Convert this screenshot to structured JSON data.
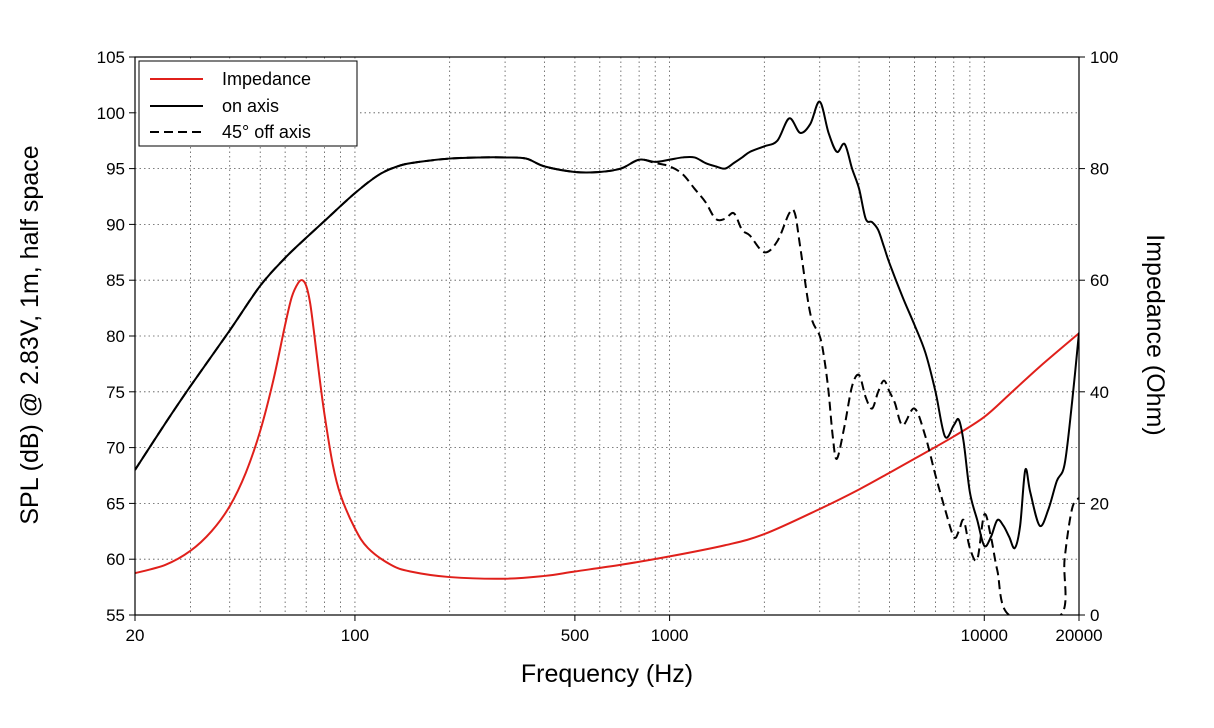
{
  "chart_data": {
    "type": "line",
    "title": "",
    "xlabel": "Frequency (Hz)",
    "ylabel": "SPL (dB) @ 2.83V, 1m, half space",
    "ylabel_right": "Impedance (Ohm)",
    "x_scale": "log",
    "xlim": [
      20,
      20000
    ],
    "ylim": [
      55,
      105
    ],
    "ylim_right": [
      0,
      100
    ],
    "grid": true,
    "legend_position": "top-left",
    "x_tick_labels": [
      "20",
      "100",
      "500",
      "1000",
      "10000",
      "20000"
    ],
    "x_tick_values": [
      20,
      100,
      500,
      1000,
      10000,
      20000
    ],
    "y_tick_labels": [
      "55",
      "60",
      "65",
      "70",
      "75",
      "80",
      "85",
      "90",
      "95",
      "100",
      "105"
    ],
    "y_tick_values": [
      55,
      60,
      65,
      70,
      75,
      80,
      85,
      90,
      95,
      100,
      105
    ],
    "y_right_tick_labels": [
      "0",
      "20",
      "40",
      "60",
      "80",
      "100"
    ],
    "y_right_tick_values": [
      0,
      20,
      40,
      60,
      80,
      100
    ],
    "series": [
      {
        "name": "Impedance",
        "axis": "right",
        "color": "#e0201b",
        "dash": "solid",
        "x": [
          20,
          25,
          30,
          35,
          40,
          45,
          50,
          55,
          60,
          63,
          66,
          68,
          70,
          72,
          74,
          77,
          80,
          85,
          90,
          100,
          110,
          130,
          150,
          200,
          300,
          400,
          500,
          700,
          1000,
          1500,
          2000,
          3000,
          4000,
          5000,
          6000,
          8000,
          10000,
          12000,
          15000,
          20000
        ],
        "values": [
          7.5,
          9.0,
          11.5,
          15.0,
          19.5,
          25.5,
          33.0,
          42.0,
          52.0,
          57.0,
          59.5,
          60.0,
          59.0,
          56.0,
          51.0,
          43.0,
          36.0,
          27.0,
          21.5,
          15.5,
          12.0,
          9.0,
          7.8,
          6.8,
          6.5,
          7.0,
          7.8,
          9.0,
          10.5,
          12.5,
          14.5,
          19.0,
          22.5,
          25.5,
          28.0,
          32.0,
          35.5,
          39.5,
          44.5,
          50.5
        ]
      },
      {
        "name": "on axis",
        "axis": "left",
        "color": "#000000",
        "dash": "solid",
        "x": [
          20,
          25,
          30,
          40,
          50,
          60,
          70,
          80,
          100,
          120,
          140,
          160,
          200,
          250,
          300,
          350,
          400,
          500,
          600,
          700,
          800,
          900,
          1000,
          1100,
          1200,
          1300,
          1400,
          1500,
          1600,
          1700,
          1800,
          2000,
          2200,
          2400,
          2600,
          2800,
          3000,
          3200,
          3400,
          3600,
          3800,
          4000,
          4200,
          4400,
          4600,
          4800,
          5000,
          5500,
          6000,
          6500,
          7000,
          7500,
          8000,
          8300,
          8600,
          9000,
          9500,
          10000,
          10500,
          11000,
          11500,
          12000,
          12500,
          13000,
          13500,
          14000,
          15000,
          16000,
          17000,
          18000,
          19000,
          20000
        ],
        "values": [
          68.0,
          72.2,
          75.5,
          80.5,
          84.5,
          87.0,
          88.8,
          90.3,
          92.8,
          94.5,
          95.3,
          95.6,
          95.9,
          96.0,
          96.0,
          95.9,
          95.2,
          94.7,
          94.7,
          95.0,
          95.8,
          95.6,
          95.8,
          96.0,
          96.0,
          95.5,
          95.2,
          95.0,
          95.5,
          96.0,
          96.5,
          97.0,
          97.5,
          99.5,
          98.2,
          99.0,
          101.0,
          98.2,
          96.5,
          97.2,
          95.0,
          93.2,
          90.5,
          90.2,
          89.5,
          88.0,
          86.5,
          83.5,
          81.0,
          78.5,
          75.0,
          71.0,
          72.0,
          72.5,
          70.5,
          66.0,
          63.5,
          61.2,
          62.0,
          63.5,
          63.0,
          62.0,
          61.0,
          63.0,
          68.0,
          66.0,
          63.0,
          64.5,
          67.0,
          68.5,
          74.0,
          80.3
        ]
      },
      {
        "name": "45° off axis",
        "axis": "left",
        "color": "#000000",
        "dash": "dashed",
        "x": [
          20,
          25,
          30,
          40,
          50,
          60,
          70,
          80,
          100,
          120,
          140,
          160,
          200,
          250,
          300,
          350,
          400,
          500,
          600,
          700,
          800,
          900,
          1000,
          1100,
          1200,
          1300,
          1400,
          1500,
          1600,
          1700,
          1800,
          2000,
          2200,
          2400,
          2500,
          2600,
          2800,
          3000,
          3100,
          3200,
          3300,
          3400,
          3600,
          3800,
          4000,
          4200,
          4400,
          4600,
          4800,
          5000,
          5200,
          5500,
          6000,
          6500,
          7000,
          7500,
          8000,
          8300,
          8600,
          9000,
          9500,
          10000,
          10500,
          11000,
          12000,
          17500,
          18000,
          19000,
          20000
        ],
        "values": [
          68.0,
          72.2,
          75.5,
          80.5,
          84.5,
          87.0,
          88.8,
          90.3,
          92.8,
          94.5,
          95.3,
          95.6,
          95.9,
          96.0,
          96.0,
          95.9,
          95.2,
          94.7,
          94.7,
          95.0,
          95.8,
          95.5,
          95.2,
          94.5,
          93.2,
          92.0,
          90.5,
          90.5,
          91.0,
          89.5,
          89.0,
          87.5,
          88.5,
          91.0,
          91.0,
          88.0,
          82.0,
          80.0,
          78.0,
          75.0,
          71.0,
          69.0,
          72.0,
          75.5,
          76.5,
          74.5,
          73.5,
          75.0,
          76.0,
          75.0,
          74.0,
          72.0,
          73.5,
          71.0,
          67.5,
          64.5,
          62.0,
          62.5,
          63.5,
          61.0,
          60.0,
          64.0,
          62.0,
          59.0,
          55.0,
          55.0,
          60.0,
          64.5,
          65.5
        ]
      }
    ]
  }
}
